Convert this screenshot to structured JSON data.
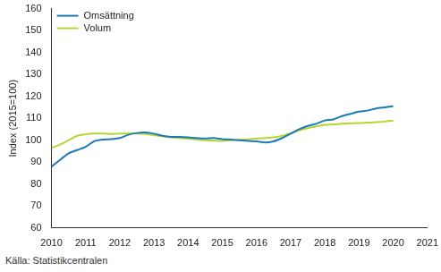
{
  "chart_data": {
    "type": "line",
    "y_label": "Index (2015=100)",
    "source": "Källa: Statistikcentralen",
    "x": [
      2010.0,
      2010.25,
      2010.5,
      2010.75,
      2011.0,
      2011.25,
      2011.5,
      2011.75,
      2012.0,
      2012.25,
      2012.5,
      2012.75,
      2013.0,
      2013.25,
      2013.5,
      2013.75,
      2014.0,
      2014.25,
      2014.5,
      2014.75,
      2015.0,
      2015.25,
      2015.5,
      2015.75,
      2016.0,
      2016.25,
      2016.5,
      2016.75,
      2017.0,
      2017.25,
      2017.5,
      2017.75,
      2018.0,
      2018.25,
      2018.5,
      2018.75,
      2019.0,
      2019.25,
      2019.5,
      2019.75,
      2020.0
    ],
    "series": [
      {
        "name": "Omsättning",
        "color": "#1a7ab8",
        "values": [
          88,
          91,
          94,
          95.5,
          97,
          99.5,
          100.3,
          100.5,
          101,
          102.5,
          103.3,
          103.6,
          103,
          102,
          101.5,
          101.5,
          101.3,
          101,
          100.8,
          101,
          100.5,
          100.3,
          100,
          99.7,
          99.5,
          99,
          99.5,
          101,
          103,
          105,
          106.5,
          107.5,
          109,
          109.5,
          111,
          112,
          113,
          113.5,
          114.5,
          115,
          115.5
        ]
      },
      {
        "name": "Volum",
        "color": "#b8d432",
        "values": [
          96.5,
          98,
          100,
          102,
          102.7,
          103,
          103,
          102.8,
          103,
          103,
          103,
          102.8,
          102.3,
          101.8,
          101.3,
          101,
          100.7,
          100.3,
          100,
          99.8,
          99.7,
          100,
          100.2,
          100.4,
          100.8,
          101,
          101.3,
          102,
          103.2,
          104.5,
          105.5,
          106.3,
          107,
          107.2,
          107.5,
          107.7,
          107.8,
          108,
          108.2,
          108.5,
          109
        ]
      }
    ],
    "xlim": [
      2010,
      2021
    ],
    "xticks": [
      2010,
      2011,
      2012,
      2013,
      2014,
      2015,
      2016,
      2017,
      2018,
      2019,
      2020,
      2021
    ],
    "ylim": [
      60,
      160
    ],
    "yticks": [
      60,
      70,
      80,
      90,
      100,
      110,
      120,
      130,
      140,
      150,
      160
    ],
    "grid": false,
    "legend": "upper left"
  }
}
